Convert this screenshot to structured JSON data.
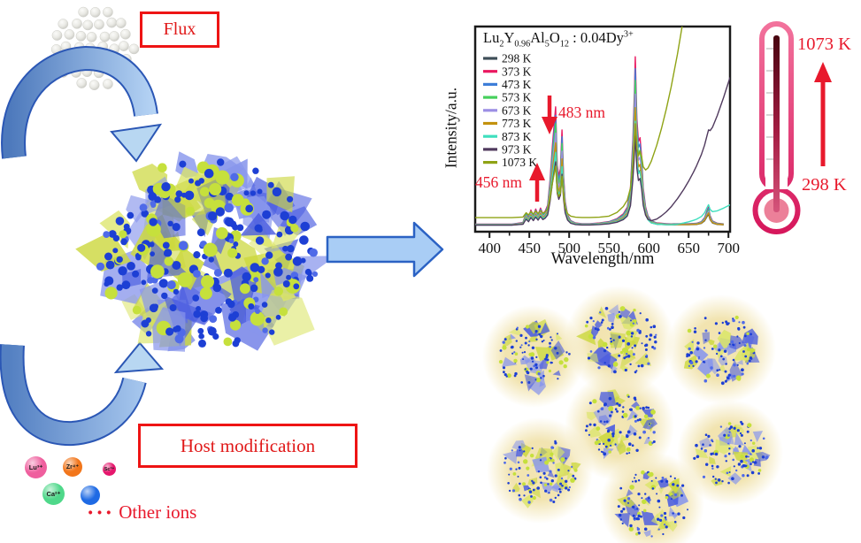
{
  "left_panel": {
    "flux_label": "Flux",
    "host_label": "Host modification",
    "ellipsis": "···",
    "other_ions_label": "Other ions",
    "ions": [
      {
        "label": "Lu³⁺",
        "color": "#ef5f9e"
      },
      {
        "label": "Zr⁴⁺",
        "color": "#f2761b"
      },
      {
        "label": "Sc³⁺",
        "color": "#e6176d"
      },
      {
        "label": "Ca²⁺",
        "color": "#4fd88a"
      },
      {
        "label": "",
        "color": "#1e6ae4"
      }
    ],
    "accent_red": "#e8192c",
    "arrow_blue_outline": "#2b57b5",
    "arrow_blue_fill": "#a9cdf5"
  },
  "chart_data": {
    "type": "line",
    "title_plain": "Lu2Y0.96Al5O12 : 0.04Dy3+",
    "title_rich": [
      {
        "t": "Lu"
      },
      {
        "sub": "2"
      },
      {
        "t": "Y"
      },
      {
        "sub": "0.96"
      },
      {
        "t": "Al"
      },
      {
        "sub": "5"
      },
      {
        "t": "O"
      },
      {
        "sub": "12"
      },
      {
        "t": " : 0.04Dy"
      },
      {
        "sup": "3+"
      }
    ],
    "xlabel": "Wavelength/nm",
    "ylabel": "Intensity/a.u.",
    "xlim": [
      382,
      702
    ],
    "xticks": [
      400,
      450,
      500,
      550,
      600,
      650,
      700
    ],
    "ylim_note": "arbitrary units, no y ticks shown",
    "legend_position": "upper-left inside frame",
    "annotations": [
      {
        "text": "456 nm",
        "wavelength": 456,
        "arrow": "up"
      },
      {
        "text": "483 nm",
        "wavelength": 483,
        "arrow": "down"
      }
    ],
    "y_model": "y = scale*profile + lift + bg_amp*((x-bg_x0)/(700-bg_x0))^bg_pow for x>bg_x0",
    "profile_x": [
      382,
      400,
      428,
      442,
      446,
      449,
      452,
      455,
      458,
      461,
      464,
      467,
      470,
      473,
      476,
      479,
      481,
      483,
      485,
      487,
      489,
      491,
      493,
      495,
      498,
      502,
      508,
      516,
      526,
      538,
      550,
      560,
      568,
      573,
      577,
      580,
      582,
      583,
      585,
      587,
      589,
      591,
      593,
      596,
      599,
      603,
      610,
      616,
      622,
      628,
      636,
      644,
      650,
      656,
      660,
      666,
      670,
      673,
      675,
      677,
      680,
      686,
      694,
      702
    ],
    "profile_y": [
      0.012,
      0.012,
      0.012,
      0.02,
      0.07,
      0.045,
      0.085,
      0.055,
      0.09,
      0.06,
      0.095,
      0.065,
      0.08,
      0.11,
      0.24,
      0.42,
      0.52,
      0.62,
      0.32,
      0.26,
      0.3,
      0.5,
      0.26,
      0.13,
      0.06,
      0.03,
      0.018,
      0.014,
      0.014,
      0.018,
      0.025,
      0.04,
      0.065,
      0.1,
      0.2,
      0.45,
      0.7,
      0.88,
      0.56,
      0.44,
      0.46,
      0.36,
      0.2,
      0.1,
      0.055,
      0.03,
      0.018,
      0.016,
      0.014,
      0.013,
      0.014,
      0.014,
      0.014,
      0.015,
      0.016,
      0.025,
      0.045,
      0.08,
      0.1,
      0.055,
      0.028,
      0.016,
      0.013,
      0.012
    ],
    "series": [
      {
        "name": "298 K",
        "color": "#3e4e58",
        "scale": 0.63,
        "bg_x0": 700,
        "bg_amp": 0,
        "bg_pow": 1,
        "lift": 0
      },
      {
        "name": "373 K",
        "color": "#ea1860",
        "scale": 1.0,
        "bg_x0": 700,
        "bg_amp": 0,
        "bg_pow": 1,
        "lift": 0
      },
      {
        "name": "473 K",
        "color": "#3d7dd8",
        "scale": 0.93,
        "bg_x0": 700,
        "bg_amp": 0,
        "bg_pow": 1,
        "lift": 0
      },
      {
        "name": "573 K",
        "color": "#46d05c",
        "scale": 0.86,
        "bg_x0": 700,
        "bg_amp": 0,
        "bg_pow": 1,
        "lift": 0
      },
      {
        "name": "673 K",
        "color": "#9c8fe4",
        "scale": 0.78,
        "bg_x0": 700,
        "bg_amp": 0,
        "bg_pow": 1,
        "lift": 0
      },
      {
        "name": "773 K",
        "color": "#c3920e",
        "scale": 0.7,
        "bg_x0": 700,
        "bg_amp": 0,
        "bg_pow": 1,
        "lift": 0
      },
      {
        "name": "873 K",
        "color": "#3fdfbe",
        "scale": 0.62,
        "bg_x0": 628,
        "bg_amp": 0.1,
        "bg_pow": 1.6,
        "lift": 0
      },
      {
        "name": "973 K",
        "color": "#503a5e",
        "scale": 0.54,
        "bg_x0": 588,
        "bg_amp": 0.74,
        "bg_pow": 2.0,
        "lift": 0
      },
      {
        "name": "1073 K",
        "color": "#8fa315",
        "scale": 0.44,
        "bg_x0": 540,
        "bg_amp": 3.2,
        "bg_pow": 2.6,
        "lift": 0.04
      }
    ]
  },
  "thermometer": {
    "top_label": "1073 K",
    "bottom_label": "298 K",
    "outline_color": "#d6175c"
  }
}
